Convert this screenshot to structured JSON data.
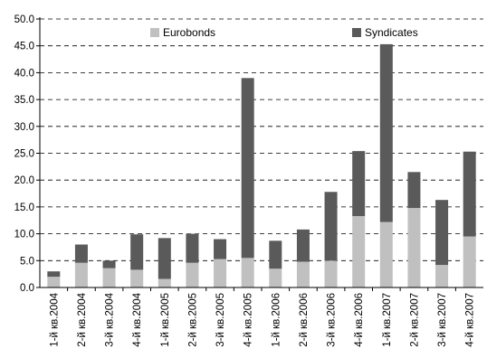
{
  "chart_data": {
    "type": "bar",
    "stacked": true,
    "categories": [
      "1-й кв.2004",
      "2-й кв.2004",
      "3-й кв.2004",
      "4-й кв.2004",
      "1-й кв.2005",
      "2-й кв.2005",
      "3-й кв.2005",
      "4-й кв.2005",
      "1-й кв.2006",
      "2-й кв.2006",
      "3-й кв.2006",
      "4-й кв.2006",
      "1-й кв.2007",
      "2-й кв.2007",
      "3-й кв.2007",
      "4-й кв.2007"
    ],
    "series": [
      {
        "name": "Eurobonds",
        "color": "#c0c0c0",
        "values": [
          2.0,
          4.6,
          3.6,
          3.3,
          1.6,
          4.6,
          5.3,
          5.5,
          3.5,
          4.8,
          5.0,
          13.3,
          12.2,
          14.8,
          4.2,
          9.5
        ]
      },
      {
        "name": "Syndicates",
        "color": "#5a5a5a",
        "values": [
          1.0,
          3.4,
          1.4,
          6.6,
          7.6,
          5.4,
          3.7,
          33.5,
          5.2,
          6.0,
          12.8,
          12.1,
          33.1,
          6.7,
          12.1,
          15.8
        ]
      }
    ],
    "y_ticks": [
      "0.0",
      "5.0",
      "10.0",
      "15.0",
      "20.0",
      "25.0",
      "30.0",
      "35.0",
      "40.0",
      "45.0",
      "50.0"
    ],
    "ylim": [
      0,
      50
    ],
    "grid": true,
    "legend": "top"
  }
}
